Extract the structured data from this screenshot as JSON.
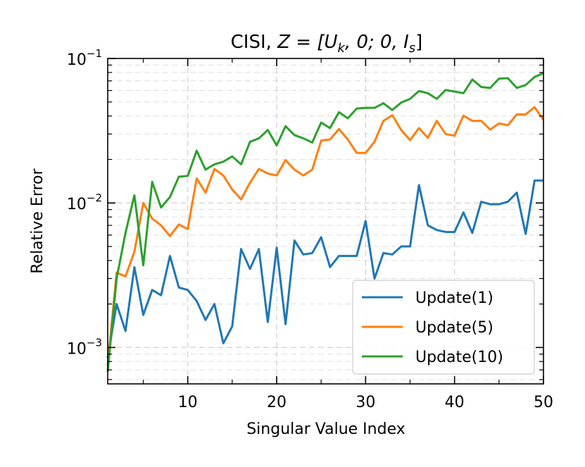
{
  "chart_data": {
    "type": "line",
    "title_main": "CISI, ",
    "title_math": "Z = [U",
    "title_sub_k": "k",
    "title_math_mid": ", 0; 0, I",
    "title_sub_s": "s",
    "title_math_end": "]",
    "xlabel": "Singular Value Index",
    "ylabel": "Relative Error",
    "xlim": [
      1,
      50
    ],
    "ylim": [
      0.00056,
      0.1
    ],
    "yscale": "log",
    "grid": true,
    "legend_position": "lower-right",
    "x_ticks": [
      10,
      20,
      30,
      40,
      50
    ],
    "x_tick_labels": [
      "10",
      "20",
      "30",
      "40",
      "50"
    ],
    "y_ticks": [
      0.001,
      0.01,
      0.1
    ],
    "y_tick_base": [
      "10",
      "10",
      "10"
    ],
    "y_tick_exp": [
      "−3",
      "−2",
      "−1"
    ],
    "x": [
      1,
      2,
      3,
      4,
      5,
      6,
      7,
      8,
      9,
      10,
      11,
      12,
      13,
      14,
      15,
      16,
      17,
      18,
      19,
      20,
      21,
      22,
      23,
      24,
      25,
      26,
      27,
      28,
      29,
      30,
      31,
      32,
      33,
      34,
      35,
      36,
      37,
      38,
      39,
      40,
      41,
      42,
      43,
      44,
      45,
      46,
      47,
      48,
      49,
      50
    ],
    "series": [
      {
        "name": "Update(1)",
        "color": "#1f77b4",
        "values": [
          0.00085,
          0.002,
          0.0013,
          0.0036,
          0.00168,
          0.0025,
          0.0023,
          0.0043,
          0.0026,
          0.0025,
          0.0021,
          0.00155,
          0.002,
          0.00107,
          0.0014,
          0.0048,
          0.0035,
          0.0048,
          0.0015,
          0.0049,
          0.00145,
          0.0055,
          0.0044,
          0.0045,
          0.0058,
          0.0036,
          0.0043,
          0.0043,
          0.0043,
          0.0075,
          0.003,
          0.0045,
          0.0044,
          0.005,
          0.005,
          0.0133,
          0.007,
          0.0065,
          0.0063,
          0.0063,
          0.0086,
          0.0062,
          0.0102,
          0.0098,
          0.0098,
          0.0102,
          0.0118,
          0.0061,
          0.0143,
          0.0143
        ]
      },
      {
        "name": "Update(5)",
        "color": "#ff7f0e",
        "values": [
          0.00075,
          0.0033,
          0.0031,
          0.0046,
          0.01,
          0.0078,
          0.007,
          0.0059,
          0.0071,
          0.0066,
          0.0148,
          0.0118,
          0.0172,
          0.0155,
          0.0124,
          0.0106,
          0.0138,
          0.0172,
          0.016,
          0.0155,
          0.0198,
          0.017,
          0.0155,
          0.017,
          0.027,
          0.0275,
          0.0325,
          0.0275,
          0.0222,
          0.0222,
          0.0265,
          0.037,
          0.0405,
          0.032,
          0.0272,
          0.033,
          0.0282,
          0.037,
          0.03,
          0.0292,
          0.0402,
          0.037,
          0.037,
          0.0322,
          0.0355,
          0.0345,
          0.041,
          0.041,
          0.046,
          0.0375
        ]
      },
      {
        "name": "Update(10)",
        "color": "#2ca02c",
        "values": [
          0.00068,
          0.003,
          0.0062,
          0.0113,
          0.0037,
          0.014,
          0.0093,
          0.011,
          0.0152,
          0.0154,
          0.023,
          0.017,
          0.0185,
          0.0193,
          0.021,
          0.0185,
          0.0265,
          0.028,
          0.032,
          0.025,
          0.034,
          0.0295,
          0.028,
          0.0262,
          0.036,
          0.033,
          0.0425,
          0.0385,
          0.045,
          0.0455,
          0.0455,
          0.049,
          0.044,
          0.0495,
          0.0525,
          0.0595,
          0.0575,
          0.0525,
          0.0605,
          0.059,
          0.0575,
          0.0715,
          0.0635,
          0.0625,
          0.0725,
          0.073,
          0.0625,
          0.0655,
          0.0745,
          0.079
        ]
      }
    ]
  }
}
